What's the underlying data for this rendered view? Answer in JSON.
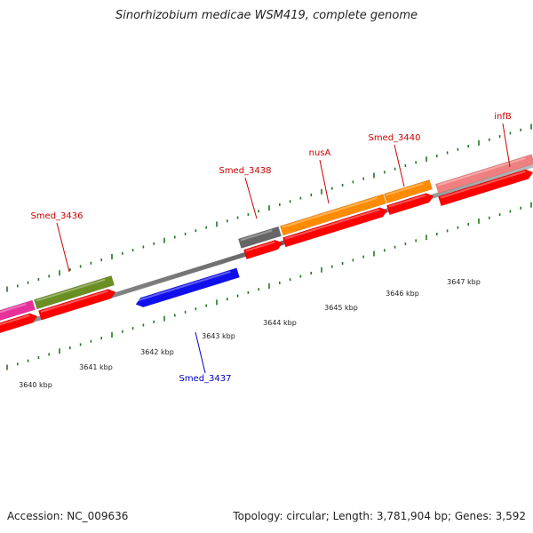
{
  "title": "Sinorhizobium medicae WSM419, complete genome",
  "footer": {
    "accession": "Accession: NC_009636",
    "summary": "Topology: circular; Length: 3,781,904 bp; Genes: 3,592"
  },
  "colors": {
    "backbone": "#7f7f7f",
    "tick": "#1f7a1f",
    "gene_label_forward": "#cc0000",
    "gene_label_reverse": "#0000cc",
    "cds": "#ff0000",
    "gene_magenta": "#e8309a",
    "gene_olive": "#6b8e23",
    "gene_blue": "#1010ee",
    "gene_gray": "#666666",
    "gene_orange": "#ff8c00",
    "gene_pink": "#f08080"
  },
  "genes": [
    {
      "name": "Smed_3436",
      "strand": "forward",
      "color": "gene_olive"
    },
    {
      "name": "Smed_3437",
      "strand": "reverse",
      "color": "gene_blue"
    },
    {
      "name": "Smed_3438",
      "strand": "forward",
      "color": "gene_gray"
    },
    {
      "name": "nusA",
      "strand": "forward",
      "color": "gene_orange"
    },
    {
      "name": "Smed_3440",
      "strand": "forward",
      "color": "gene_orange"
    },
    {
      "name": "infB",
      "strand": "forward",
      "color": "gene_pink"
    }
  ],
  "kbp_labels": [
    "3640 kbp",
    "3641 kbp",
    "3642 kbp",
    "3643 kbp",
    "3644 kbp",
    "3645 kbp",
    "3646 kbp",
    "3647 kbp"
  ]
}
